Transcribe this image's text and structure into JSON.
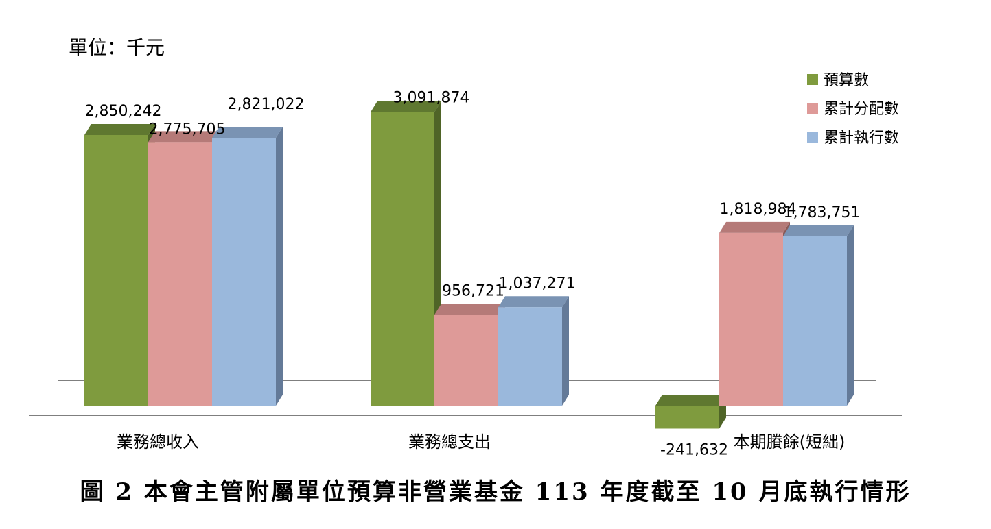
{
  "unit_label": "單位：千元",
  "caption": "圖 2  本會主管附屬單位預算非營業基金 113 年度截至 10 月底執行情形",
  "colors": {
    "budget_front": "#7f9b3e",
    "budget_top": "#5f7830",
    "budget_side": "#4f6427",
    "allocated_front": "#de9a98",
    "allocated_top": "#b57a78",
    "allocated_side": "#8a5a58",
    "executed_front": "#9ab8dc",
    "executed_top": "#7a93b3",
    "executed_side": "#647a98"
  },
  "chart_data": {
    "type": "bar",
    "categories": [
      "業務總收入",
      "業務總支出",
      "本期賸餘(短絀)"
    ],
    "series": [
      {
        "name": "預算數",
        "values": [
          2850242,
          3091874,
          -241632
        ],
        "labels": [
          "2,850,242",
          "3,091,874",
          "-241,632"
        ]
      },
      {
        "name": "累計分配數",
        "values": [
          2775705,
          956721,
          1818984
        ],
        "labels": [
          "2,775,705",
          "956,721",
          "1,818,984"
        ]
      },
      {
        "name": "累計執行數",
        "values": [
          2821022,
          1037271,
          1783751
        ],
        "labels": [
          "2,821,022",
          "1,037,271",
          "1,783,751"
        ]
      }
    ],
    "legend_position": "top-right",
    "ylim": [
      -300000,
      3300000
    ],
    "grid": false
  }
}
